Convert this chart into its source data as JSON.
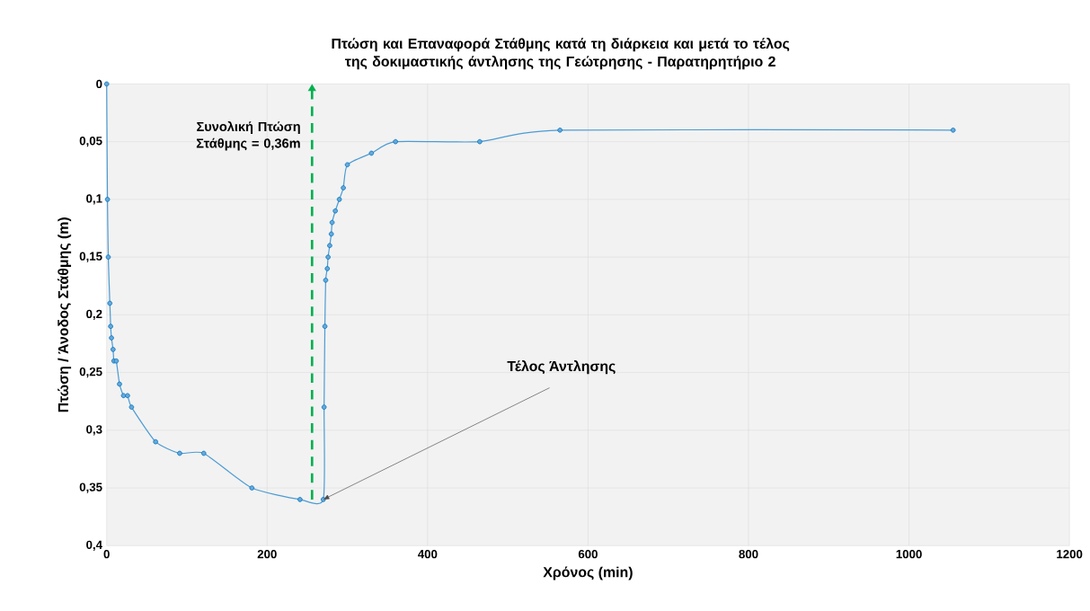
{
  "chart_data": {
    "type": "line",
    "title": "Πτώση και Επαναφορά Στάθμης κατά τη διάρκεια και μετά το τέλος της δοκιμαστικής άντλησης της Γεώτρησης - Παρατηρητήριο 2",
    "xlabel": "Χρόνος (min)",
    "ylabel": "Πτώση / Άνοδος Στάθμης (m)",
    "x": [
      0,
      1,
      2,
      4,
      5,
      6,
      8,
      9,
      12,
      16,
      21,
      26,
      31,
      61,
      91,
      121,
      181,
      241,
      270,
      271,
      272,
      273,
      275,
      276,
      278,
      280,
      281,
      285,
      290,
      295,
      300,
      330,
      360,
      465,
      565,
      1055
    ],
    "series": [
      {
        "color": "#0070c0",
        "values": [
          0,
          0.1,
          0.15,
          0.19,
          0.21,
          0.22,
          0.23,
          0.24,
          0.24,
          0.26,
          0.27,
          0.27,
          0.28,
          0.31,
          0.32,
          0.32,
          0.35,
          0.36,
          0.36,
          0.28,
          0.21,
          0.17,
          0.16,
          0.15,
          0.14,
          0.13,
          0.12,
          0.11,
          0.1,
          0.09,
          0.07,
          0.06,
          0.05,
          0.05,
          0.04,
          0.04
        ]
      },
      {
        "color": "#00b050",
        "x": [
          256,
          256
        ],
        "values": [
          0.36,
          0
        ],
        "line_style": "dashed",
        "marker": "none"
      }
    ],
    "xlim": [
      0,
      1200
    ],
    "xticks": [
      0,
      200,
      400,
      600,
      800,
      1000,
      1200
    ],
    "ylim": [
      0.4,
      0
    ],
    "yticks": [
      0,
      {
        "value": 0.05,
        "label": "0,05"
      },
      {
        "value": 0.1,
        "label": "0,1"
      },
      {
        "value": 0.15,
        "label": "0,15"
      },
      {
        "value": 0.2,
        "label": "0,2"
      },
      {
        "value": 0.25,
        "label": "0,25"
      },
      {
        "value": 0.3,
        "label": "0,3"
      },
      {
        "value": 0.35,
        "label": "0,35"
      },
      {
        "value": 0.4,
        "label": "0,4"
      }
    ],
    "annotations": [
      "Συνολική Πτώση Στάθμης = 0,36m",
      {
        "text": "Τέλος Άντλησης",
        "x": 270,
        "y": 0.36
      }
    ],
    "grid": true,
    "legend": false,
    "marker": "circle",
    "line_style": "solid"
  }
}
